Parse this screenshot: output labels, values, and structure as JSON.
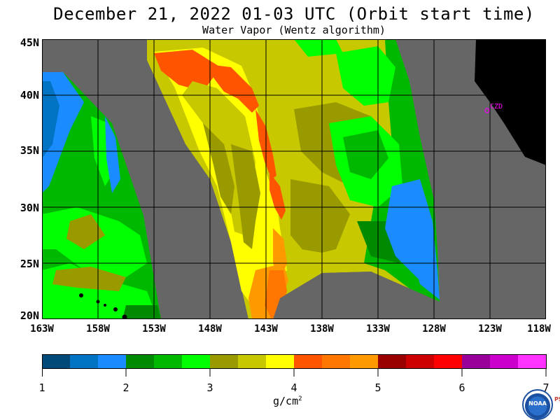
{
  "header": {
    "title": "December 21, 2022  01-03 UTC  (Orbit start time)",
    "subtitle": "Water Vapor (Wentz algorithm)"
  },
  "map": {
    "lat_labels": [
      "45N",
      "40N",
      "35N",
      "30N",
      "25N",
      "20N"
    ],
    "lon_labels": [
      "163W",
      "158W",
      "153W",
      "148W",
      "143W",
      "138W",
      "133W",
      "128W",
      "123W",
      "118W"
    ],
    "lat_range": [
      20,
      45
    ],
    "lon_range": [
      -163,
      -118
    ],
    "station_label": "CZD",
    "colors": {
      "no_data": "#666666",
      "land": "#000000",
      "station": "#ff00ff",
      "grid": "#000000"
    }
  },
  "colorbar": {
    "tick_labels": [
      "1",
      "2",
      "3",
      "4",
      "5",
      "6",
      "7"
    ],
    "unit": "g/cm",
    "unit_sup": "2",
    "colors": [
      "#004a7a",
      "#0073c2",
      "#1a8cff",
      "#008a00",
      "#00b800",
      "#00ff00",
      "#999900",
      "#c8c800",
      "#ffff00",
      "#ff5500",
      "#ff7700",
      "#ff9900",
      "#990000",
      "#cc0000",
      "#ff0000",
      "#990099",
      "#cc00cc",
      "#ff33ff"
    ]
  },
  "logo": {
    "text": "NOAA",
    "side_text": "PSL"
  }
}
